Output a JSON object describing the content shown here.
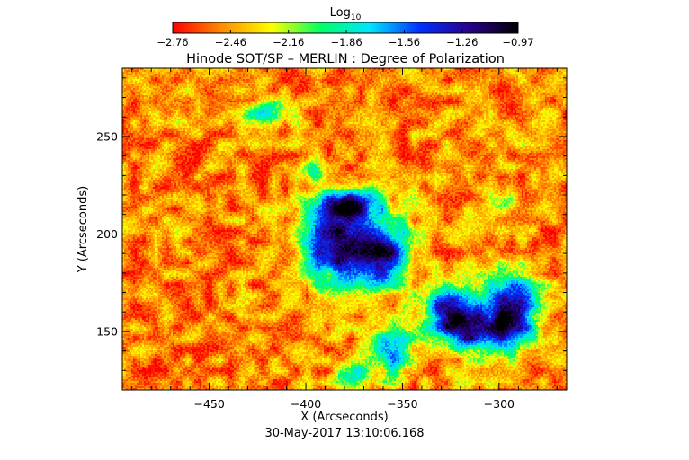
{
  "chart_data": {
    "type": "heatmap",
    "title": "Hinode SOT/SP – MERLIN : Degree of Polarization",
    "xlabel": "X (Arcseconds)",
    "ylabel": "Y (Arcseconds)",
    "timestamp": "30-May-2017 13:10:06.168",
    "xlim": [
      -495,
      -265
    ],
    "ylim": [
      120,
      285
    ],
    "xticks": [
      -450,
      -400,
      -350,
      -300
    ],
    "yticks": [
      150,
      200,
      250
    ],
    "xtick_labels": [
      "−450",
      "−400",
      "−350",
      "−300"
    ],
    "ytick_labels": [
      "150",
      "200",
      "250"
    ],
    "grid": false,
    "colorbar": {
      "label_base": "Log",
      "label_sub": "10",
      "range": [
        -2.76,
        -0.97
      ],
      "ticks": [
        -2.76,
        -2.46,
        -2.16,
        -1.86,
        -1.56,
        -1.26,
        -0.97
      ],
      "tick_labels": [
        "−2.76",
        "−2.46",
        "−2.16",
        "−1.86",
        "−1.56",
        "−1.26",
        "−0.97"
      ],
      "colors": [
        "#ff0000",
        "#ff8c00",
        "#ffff00",
        "#00ff66",
        "#00e5ff",
        "#0030ff",
        "#2a008a",
        "#000000"
      ],
      "placement": "top"
    },
    "background_level": -2.5,
    "features": [
      {
        "x": -385,
        "y": 195,
        "sx": 12,
        "sy": 14,
        "amp": 1.35
      },
      {
        "x": -360,
        "y": 190,
        "sx": 10,
        "sy": 12,
        "amp": 1.3
      },
      {
        "x": -378,
        "y": 215,
        "sx": 12,
        "sy": 6,
        "amp": 1.0
      },
      {
        "x": -325,
        "y": 160,
        "sx": 10,
        "sy": 10,
        "amp": 1.25
      },
      {
        "x": -293,
        "y": 162,
        "sx": 9,
        "sy": 14,
        "amp": 1.35
      },
      {
        "x": -310,
        "y": 150,
        "sx": 12,
        "sy": 7,
        "amp": 1.0
      },
      {
        "x": -355,
        "y": 140,
        "sx": 7,
        "sy": 9,
        "amp": 0.9
      },
      {
        "x": -375,
        "y": 128,
        "sx": 6,
        "sy": 5,
        "amp": 0.8
      },
      {
        "x": -420,
        "y": 262,
        "sx": 9,
        "sy": 4,
        "amp": 0.7
      },
      {
        "x": -397,
        "y": 233,
        "sx": 4,
        "sy": 4,
        "amp": 0.6
      },
      {
        "x": -297,
        "y": 216,
        "sx": 5,
        "sy": 4,
        "amp": 0.4
      }
    ]
  }
}
